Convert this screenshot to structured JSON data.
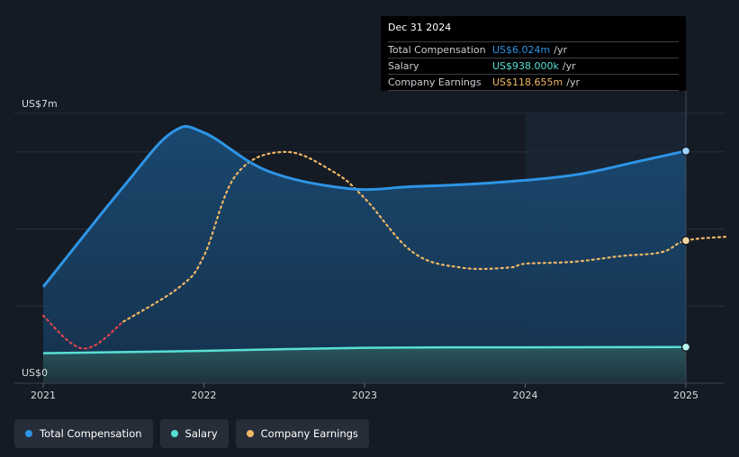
{
  "chart_data": {
    "type": "line",
    "y_axis": {
      "top_label": "US$7m",
      "bottom_label": "US$0",
      "ylim": [
        0,
        7
      ]
    },
    "x_ticks": [
      "2021",
      "2022",
      "2023",
      "2024",
      "2025"
    ],
    "series": [
      {
        "name": "Total Compensation",
        "color": "#2e95e6",
        "x": [
          2021.0,
          2021.5,
          2021.8,
          2022.0,
          2022.4,
          2022.9,
          2023.3,
          2023.8,
          2024.3,
          2024.7,
          2025.0
        ],
        "values": [
          2.5,
          5.1,
          6.5,
          6.5,
          5.5,
          5.05,
          5.1,
          5.2,
          5.4,
          5.75,
          6.024
        ]
      },
      {
        "name": "Salary",
        "color": "#57e0d4",
        "x": [
          2021.0,
          2022.0,
          2023.0,
          2024.0,
          2025.0
        ],
        "values": [
          0.78,
          0.84,
          0.92,
          0.93,
          0.938
        ]
      },
      {
        "name": "Company Earnings",
        "color": "#f0b765",
        "x": [
          2021.0,
          2021.25,
          2021.5,
          2021.85,
          2022.0,
          2022.2,
          2022.5,
          2022.8,
          2023.0,
          2023.3,
          2023.6,
          2023.9,
          2024.0,
          2024.3,
          2024.6,
          2024.85,
          2025.0,
          2025.25
        ],
        "values": [
          1.75,
          0.9,
          1.6,
          2.5,
          3.3,
          5.4,
          6.0,
          5.5,
          4.8,
          3.4,
          3.0,
          3.0,
          3.1,
          3.15,
          3.3,
          3.4,
          3.7,
          3.8
        ]
      }
    ],
    "negative_color": "#e0444d",
    "legend_position": "bottom-left",
    "grid": true
  },
  "tooltip": {
    "date": "Dec 31 2024",
    "rows": [
      {
        "label": "Total Compensation",
        "value": "US$6.024m",
        "unit": "/yr",
        "color": "#2e95e6"
      },
      {
        "label": "Salary",
        "value": "US$938.000k",
        "unit": "/yr",
        "color": "#57e0d4"
      },
      {
        "label": "Company Earnings",
        "value": "US$118.655m",
        "unit": "/yr",
        "color": "#f0b765"
      }
    ]
  },
  "legend": [
    {
      "label": "Total Compensation",
      "color": "#2e95e6"
    },
    {
      "label": "Salary",
      "color": "#57e0d4"
    },
    {
      "label": "Company Earnings",
      "color": "#f0b765"
    }
  ]
}
